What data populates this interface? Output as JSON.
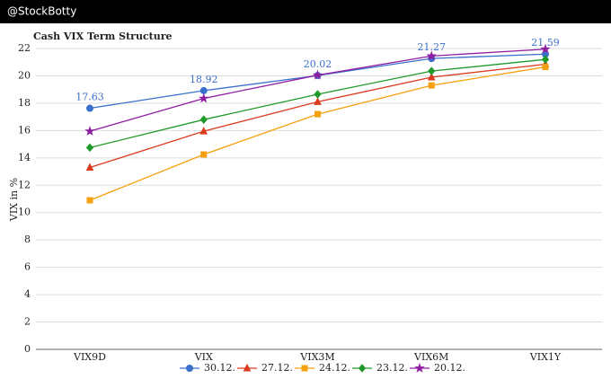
{
  "header": "@StockBotty",
  "chart_data": {
    "type": "line",
    "title": "Cash VIX Term Structure",
    "y_label": "VIX in %",
    "categories": [
      "VIX9D",
      "VIX",
      "VIX3M",
      "VIX6M",
      "VIX1Y"
    ],
    "ylim": [
      0,
      22
    ],
    "yticks": [
      0,
      2,
      4,
      6,
      8,
      10,
      12,
      14,
      16,
      18,
      20,
      22
    ],
    "grid": true,
    "legend": "bottom",
    "series": [
      {
        "name": "30.12.",
        "color": "#3a6fcc",
        "marker": "circle",
        "show_labels": true,
        "values": [
          17.63,
          18.92,
          20.02,
          21.27,
          21.59
        ]
      },
      {
        "name": "27.12.",
        "color": "#dc3a1f",
        "marker": "triangle",
        "values": [
          13.3,
          15.95,
          18.1,
          19.9,
          20.85
        ]
      },
      {
        "name": "24.12.",
        "color": "#f5a00f",
        "marker": "square",
        "values": [
          10.9,
          14.25,
          17.2,
          19.3,
          20.65
        ]
      },
      {
        "name": "23.12.",
        "color": "#1f9a2a",
        "marker": "diamond",
        "values": [
          14.75,
          16.8,
          18.65,
          20.35,
          21.2
        ]
      },
      {
        "name": "20.12.",
        "color": "#8e1ea0",
        "marker": "star",
        "values": [
          15.95,
          18.35,
          20.05,
          21.45,
          21.95
        ]
      }
    ]
  }
}
